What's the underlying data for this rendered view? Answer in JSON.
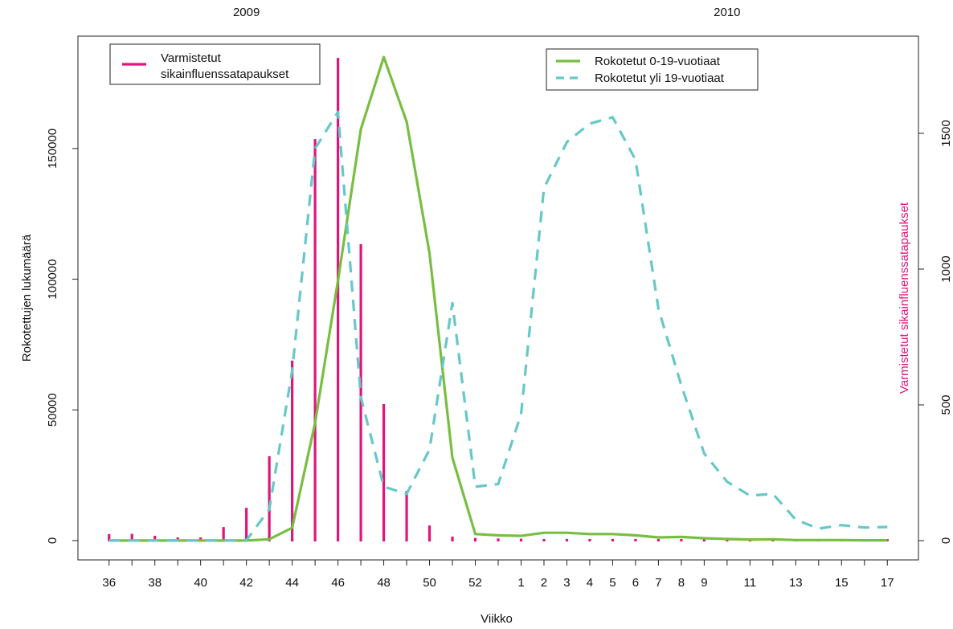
{
  "chart_data": {
    "type": "bar",
    "annotations": [
      "2009",
      "2010"
    ],
    "x_label": "Viikko",
    "y_label": "Rokotettujen lukumäärä",
    "y2_label": "Varmistetut sikainfluenssatapaukset",
    "y2_label_color": "#e0157c",
    "categories": [
      "36",
      null,
      "38",
      null,
      "40",
      null,
      "42",
      null,
      "44",
      null,
      "46",
      null,
      "48",
      null,
      "50",
      null,
      "52",
      null,
      "1",
      "2",
      "3",
      "4",
      "5",
      "6",
      "7",
      "8",
      "9",
      null,
      "11",
      null,
      "13",
      null,
      "15",
      null,
      "17"
    ],
    "ylim": [
      -7400,
      193000
    ],
    "yticks": [
      0,
      50000,
      100000,
      150000
    ],
    "y2lim": [
      -71,
      1858
    ],
    "y2ticks": [
      0,
      500,
      1000,
      1500
    ],
    "series": [
      {
        "name": "Varmistetut sikainfluenssatapaukset",
        "type": "bar",
        "axis": "y2",
        "color": "#e0157c",
        "values": [
          24,
          25,
          18,
          12,
          12,
          50,
          121,
          311,
          663,
          1479,
          1778,
          1092,
          503,
          183,
          56,
          15,
          10,
          8,
          7,
          4,
          2,
          3,
          3,
          3,
          3,
          3,
          3,
          3,
          3,
          3,
          3,
          3,
          3,
          3,
          3
        ]
      },
      {
        "name": "Rokotetut 0-19-vuotiaat",
        "type": "line",
        "dash": false,
        "color": "#78be40",
        "values": [
          0,
          0,
          0,
          0,
          0,
          0,
          0,
          500,
          4900,
          45000,
          99500,
          157400,
          185000,
          160200,
          110000,
          31700,
          2500,
          2000,
          1800,
          3000,
          3000,
          2500,
          2500,
          2000,
          1200,
          1400,
          900,
          600,
          400,
          500,
          200,
          200,
          200,
          100,
          100
        ]
      },
      {
        "name": "Rokotetut yli 19-vuotiaat",
        "type": "line",
        "dash": true,
        "color": "#66c8c8",
        "values": [
          0,
          0,
          0,
          0,
          0,
          0,
          100,
          12000,
          65000,
          150000,
          164000,
          54800,
          20600,
          17900,
          34800,
          90900,
          20600,
          21600,
          48400,
          134900,
          152500,
          159500,
          162000,
          145700,
          88700,
          59400,
          33300,
          22500,
          17200,
          17900,
          8000,
          4600,
          5900,
          5000,
          5200
        ]
      }
    ]
  }
}
